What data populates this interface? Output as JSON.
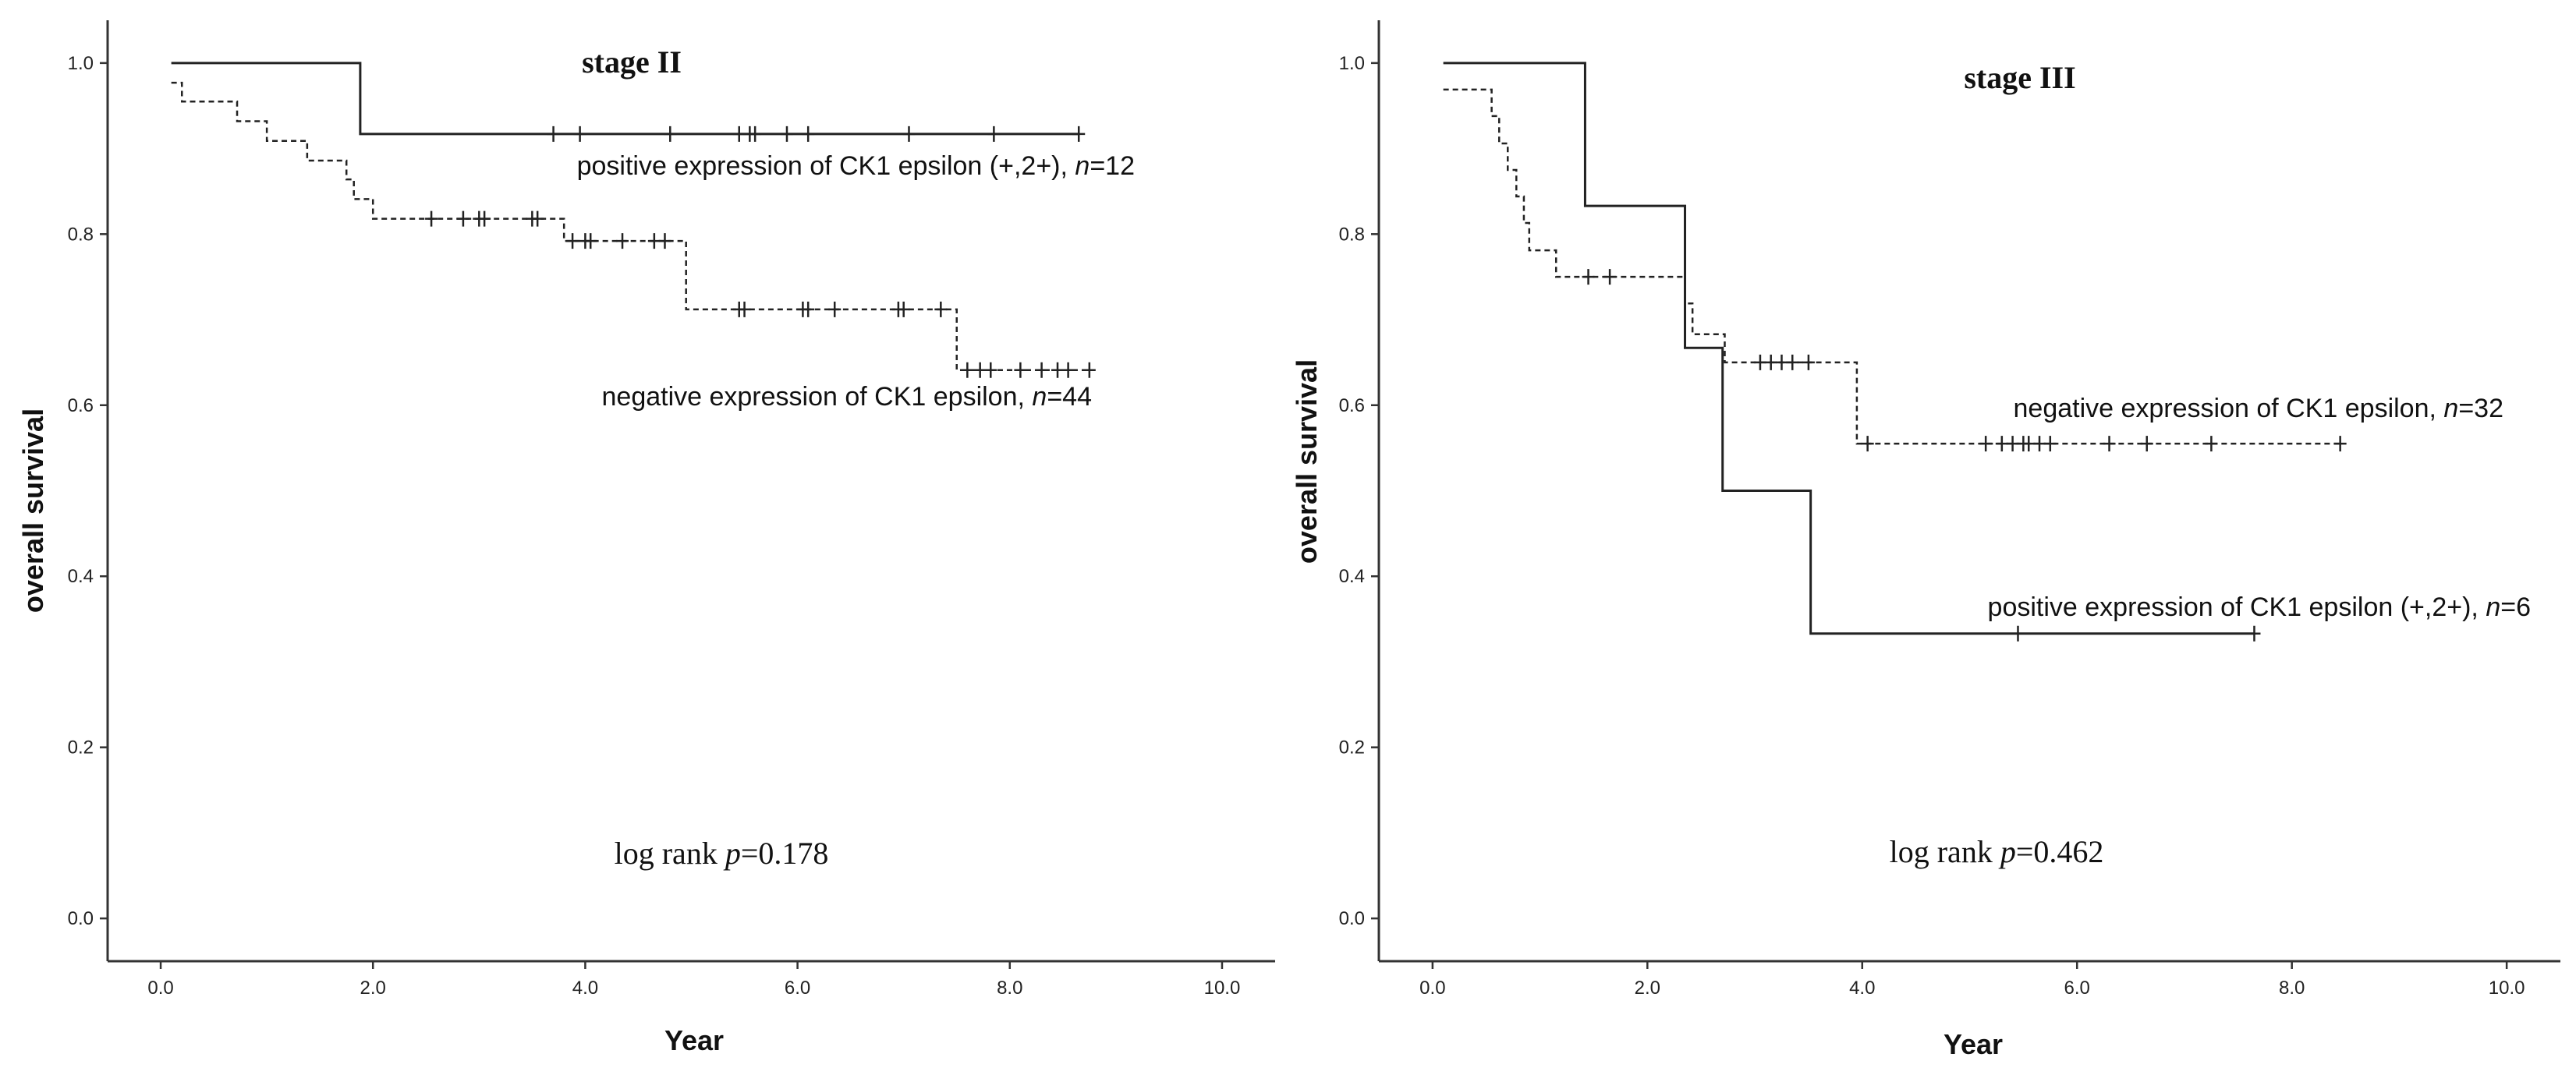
{
  "chart_data": [
    {
      "type": "line",
      "title": "stage II",
      "xlabel": "Year",
      "ylabel": "overall survival",
      "xlim": [
        -0.5,
        10.5
      ],
      "ylim": [
        -0.05,
        1.05
      ],
      "xticks": [
        "0.0",
        "2.0",
        "4.0",
        "6.0",
        "8.0",
        "10.0"
      ],
      "yticks": [
        "0.0",
        "0.2",
        "0.4",
        "0.6",
        "0.8",
        "1.0"
      ],
      "annotation": {
        "prefix": "log rank ",
        "p_symbol": "p",
        "value": "=0.178"
      },
      "series": [
        {
          "label_text": "positive expression of CK1 epsilon  (+,2+), ",
          "n_symbol": "n",
          "n_text": "=12",
          "line_style": "solid",
          "steps": [
            [
              0.1,
              1.0
            ],
            [
              1.88,
              0.917
            ],
            [
              8.65,
              0.917
            ]
          ],
          "censor_x": [
            3.7,
            3.95,
            4.8,
            5.45,
            5.55,
            5.6,
            5.9,
            6.1,
            7.05,
            7.85,
            8.65
          ]
        },
        {
          "label_text": "negative expression of CK1 epsilon, ",
          "n_symbol": "n",
          "n_text": "=44",
          "line_style": "dashed",
          "steps": [
            [
              0.1,
              0.977
            ],
            [
              0.2,
              0.955
            ],
            [
              0.72,
              0.932
            ],
            [
              1.0,
              0.909
            ],
            [
              1.38,
              0.886
            ],
            [
              1.75,
              0.864
            ],
            [
              1.82,
              0.841
            ],
            [
              2.0,
              0.818
            ],
            [
              3.8,
              0.792
            ],
            [
              4.95,
              0.712
            ],
            [
              7.5,
              0.641
            ],
            [
              8.8,
              0.641
            ]
          ],
          "censor_x": [
            2.55,
            2.85,
            3.0,
            3.05,
            3.5,
            3.55,
            3.88,
            4.0,
            4.05,
            4.35,
            4.65,
            4.75,
            5.45,
            5.5,
            6.05,
            6.1,
            6.35,
            6.95,
            7.0,
            7.35,
            7.6,
            7.72,
            7.82,
            8.1,
            8.3,
            8.45,
            8.55,
            8.75
          ]
        }
      ]
    },
    {
      "type": "line",
      "title": "stage III",
      "xlabel": "Year",
      "ylabel": "overall survival",
      "xlim": [
        -0.5,
        10.5
      ],
      "ylim": [
        -0.05,
        1.05
      ],
      "xticks": [
        "0.0",
        "2.0",
        "4.0",
        "6.0",
        "8.0",
        "10.0"
      ],
      "yticks": [
        "0.0",
        "0.2",
        "0.4",
        "0.6",
        "0.8",
        "1.0"
      ],
      "annotation": {
        "prefix": "log rank ",
        "p_symbol": "p",
        "value": "=0.462"
      },
      "series": [
        {
          "label_text": "negative expression of CK1 epsilon, ",
          "n_symbol": "n",
          "n_text": "=32",
          "line_style": "dashed",
          "steps": [
            [
              0.1,
              0.969
            ],
            [
              0.55,
              0.938
            ],
            [
              0.62,
              0.906
            ],
            [
              0.7,
              0.875
            ],
            [
              0.78,
              0.844
            ],
            [
              0.85,
              0.813
            ],
            [
              0.9,
              0.781
            ],
            [
              1.15,
              0.75
            ],
            [
              2.35,
              0.719
            ],
            [
              2.42,
              0.683
            ],
            [
              2.72,
              0.65
            ],
            [
              3.95,
              0.555
            ],
            [
              8.45,
              0.555
            ]
          ],
          "censor_x": [
            1.45,
            1.65,
            3.05,
            3.15,
            3.25,
            3.35,
            3.5,
            4.05,
            5.15,
            5.3,
            5.4,
            5.5,
            5.55,
            5.65,
            5.75,
            6.3,
            6.65,
            7.25,
            8.45
          ]
        },
        {
          "label_text": "positive expression of CK1 epsilon (+,2+), ",
          "n_symbol": "n",
          "n_text": "=6",
          "line_style": "solid",
          "steps": [
            [
              0.1,
              1.0
            ],
            [
              1.42,
              0.833
            ],
            [
              2.35,
              0.667
            ],
            [
              2.7,
              0.5
            ],
            [
              3.52,
              0.333
            ],
            [
              7.65,
              0.333
            ]
          ],
          "censor_x": [
            5.45,
            7.65
          ]
        }
      ]
    }
  ]
}
